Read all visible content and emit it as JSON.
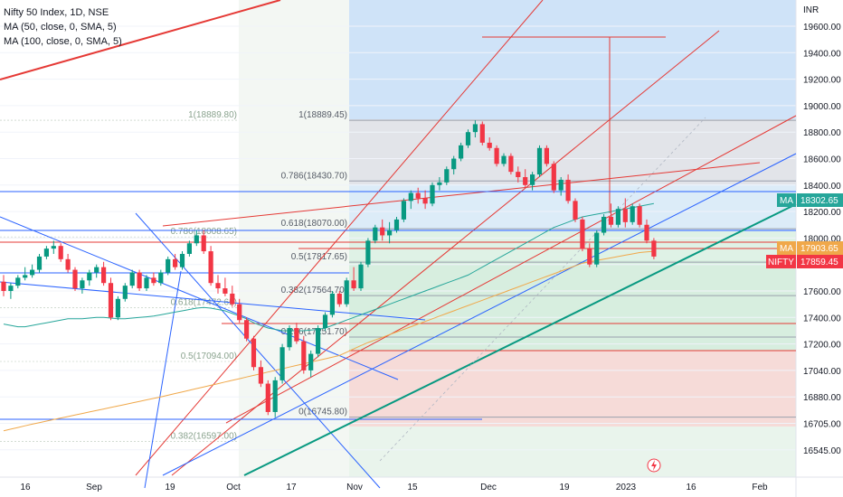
{
  "legend": {
    "title": "Nifty 50 Index, 1D, NSE",
    "ma1": "MA (50, close, 0, SMA, 5)",
    "ma2": "MA (100, close, 0, SMA, 5)"
  },
  "chart_data": {
    "type": "candlestick",
    "currency": "INR",
    "y_ticks": [
      {
        "value": 19600,
        "label": "19600.00"
      },
      {
        "value": 19400,
        "label": "19400.00"
      },
      {
        "value": 19200,
        "label": "19200.00"
      },
      {
        "value": 19000,
        "label": "19000.00"
      },
      {
        "value": 18800,
        "label": "18800.00"
      },
      {
        "value": 18600,
        "label": "18600.00"
      },
      {
        "value": 18400,
        "label": "18400.00"
      },
      {
        "value": 18200,
        "label": "18200.00"
      },
      {
        "value": 18000,
        "label": "18000.00"
      },
      {
        "value": 17800,
        "label": "17800.00"
      },
      {
        "value": 17600,
        "label": "17600.00"
      },
      {
        "value": 17400,
        "label": "17400.00"
      },
      {
        "value": 17200,
        "label": "17200.00"
      },
      {
        "value": 17040,
        "label": "17040.00"
      },
      {
        "value": 16880,
        "label": "16880.00"
      },
      {
        "value": 16705,
        "label": "16705.00"
      },
      {
        "value": 16545,
        "label": "16545.00"
      }
    ],
    "x_ticks": [
      "16",
      "Sep",
      "19",
      "Oct",
      "17",
      "Nov",
      "15",
      "Dec",
      "19",
      "2023",
      "16",
      "Feb"
    ],
    "price_labels": [
      {
        "tag": "MA",
        "value": "18302.65",
        "color": "#26a69a"
      },
      {
        "tag": "MA",
        "value": "17903.65",
        "color": "#f0a84a"
      },
      {
        "tag": "NIFTY",
        "value": "17859.45",
        "color": "#f23645"
      }
    ],
    "fib_primary": [
      {
        "label": "1(18889.45)",
        "value": 18889.45
      },
      {
        "label": "0.786(18430.70)",
        "value": 18430.7
      },
      {
        "label": "0.618(18070.00)",
        "value": 18070.0
      },
      {
        "label": "0.5(17817.65)",
        "value": 17817.65
      },
      {
        "label": "0.382(17564.70)",
        "value": 17564.7
      },
      {
        "label": "0.236(17251.70)",
        "value": 17251.7
      },
      {
        "label": "0(16745.80)",
        "value": 16745.8
      }
    ],
    "fib_secondary": [
      {
        "label": "1(18889.80)",
        "value": 18889.8
      },
      {
        "label": "0.786(18008.65)",
        "value": 18008.65
      },
      {
        "label": "0.618(17472.65)",
        "value": 17472.65
      },
      {
        "label": "0.5(17094.00)",
        "value": 17094.0
      },
      {
        "label": "0.382(16597.00)",
        "value": 16597.0
      }
    ],
    "candles": [
      [
        17670,
        17720,
        17560,
        17600
      ],
      [
        17600,
        17660,
        17540,
        17640
      ],
      [
        17640,
        17720,
        17620,
        17700
      ],
      [
        17700,
        17780,
        17680,
        17720
      ],
      [
        17720,
        17800,
        17700,
        17760
      ],
      [
        17760,
        17880,
        17740,
        17860
      ],
      [
        17860,
        17940,
        17840,
        17920
      ],
      [
        17920,
        17980,
        17880,
        17940
      ],
      [
        17940,
        17960,
        17820,
        17840
      ],
      [
        17840,
        17880,
        17740,
        17760
      ],
      [
        17760,
        17780,
        17600,
        17620
      ],
      [
        17620,
        17700,
        17580,
        17680
      ],
      [
        17680,
        17760,
        17640,
        17740
      ],
      [
        17740,
        17800,
        17700,
        17780
      ],
      [
        17780,
        17820,
        17640,
        17660
      ],
      [
        17660,
        17700,
        17380,
        17400
      ],
      [
        17400,
        17560,
        17380,
        17540
      ],
      [
        17540,
        17660,
        17520,
        17640
      ],
      [
        17640,
        17760,
        17620,
        17740
      ],
      [
        17740,
        17760,
        17600,
        17620
      ],
      [
        17620,
        17720,
        17600,
        17700
      ],
      [
        17700,
        17740,
        17640,
        17660
      ],
      [
        17660,
        17760,
        17640,
        17740
      ],
      [
        17740,
        17860,
        17720,
        17840
      ],
      [
        17840,
        17880,
        17760,
        17780
      ],
      [
        17780,
        17900,
        17760,
        17880
      ],
      [
        17880,
        17980,
        17860,
        17960
      ],
      [
        17960,
        18060,
        17940,
        18020
      ],
      [
        18020,
        18060,
        17880,
        17900
      ],
      [
        17900,
        17940,
        17640,
        17660
      ],
      [
        17660,
        17720,
        17580,
        17620
      ],
      [
        17620,
        17700,
        17560,
        17580
      ],
      [
        17580,
        17640,
        17480,
        17500
      ],
      [
        17500,
        17540,
        17360,
        17380
      ],
      [
        17380,
        17400,
        17220,
        17240
      ],
      [
        17240,
        17260,
        17040,
        17060
      ],
      [
        17060,
        17100,
        16940,
        16960
      ],
      [
        16960,
        16980,
        16760,
        16780
      ],
      [
        16780,
        17000,
        16745,
        16980
      ],
      [
        16980,
        17200,
        16960,
        17180
      ],
      [
        17180,
        17340,
        17160,
        17320
      ],
      [
        17320,
        17360,
        17200,
        17220
      ],
      [
        17220,
        17260,
        17020,
        17040
      ],
      [
        17040,
        17160,
        17000,
        17140
      ],
      [
        17140,
        17340,
        17120,
        17320
      ],
      [
        17320,
        17440,
        17300,
        17420
      ],
      [
        17420,
        17600,
        17400,
        17580
      ],
      [
        17580,
        17600,
        17480,
        17500
      ],
      [
        17500,
        17700,
        17480,
        17680
      ],
      [
        17680,
        17780,
        17600,
        17620
      ],
      [
        17620,
        17820,
        17600,
        17800
      ],
      [
        17800,
        18000,
        17780,
        17980
      ],
      [
        17980,
        18100,
        17960,
        18080
      ],
      [
        18080,
        18140,
        17980,
        18020
      ],
      [
        18020,
        18120,
        17960,
        18060
      ],
      [
        18060,
        18160,
        18040,
        18140
      ],
      [
        18140,
        18300,
        18120,
        18280
      ],
      [
        18280,
        18360,
        18220,
        18340
      ],
      [
        18340,
        18380,
        18260,
        18300
      ],
      [
        18300,
        18360,
        18220,
        18260
      ],
      [
        18260,
        18420,
        18240,
        18400
      ],
      [
        18400,
        18460,
        18360,
        18420
      ],
      [
        18420,
        18540,
        18400,
        18520
      ],
      [
        18520,
        18620,
        18480,
        18600
      ],
      [
        18600,
        18720,
        18580,
        18700
      ],
      [
        18700,
        18820,
        18680,
        18800
      ],
      [
        18800,
        18889,
        18760,
        18860
      ],
      [
        18860,
        18880,
        18700,
        18720
      ],
      [
        18720,
        18760,
        18660,
        18680
      ],
      [
        18680,
        18700,
        18540,
        18560
      ],
      [
        18560,
        18640,
        18540,
        18620
      ],
      [
        18620,
        18640,
        18480,
        18500
      ],
      [
        18500,
        18540,
        18420,
        18460
      ],
      [
        18460,
        18520,
        18380,
        18400
      ],
      [
        18400,
        18500,
        18360,
        18480
      ],
      [
        18480,
        18700,
        18460,
        18680
      ],
      [
        18680,
        18700,
        18540,
        18560
      ],
      [
        18560,
        18580,
        18340,
        18360
      ],
      [
        18360,
        18460,
        18320,
        18440
      ],
      [
        18440,
        18480,
        18260,
        18280
      ],
      [
        18280,
        18300,
        18120,
        18140
      ],
      [
        18140,
        18160,
        17900,
        17920
      ],
      [
        17920,
        17960,
        17780,
        17800
      ],
      [
        17800,
        18060,
        17780,
        18040
      ],
      [
        18040,
        18180,
        18020,
        18160
      ],
      [
        18160,
        18260,
        18080,
        18100
      ],
      [
        18100,
        18240,
        18080,
        18220
      ],
      [
        18220,
        18300,
        18080,
        18120
      ],
      [
        18120,
        18260,
        18100,
        18240
      ],
      [
        18240,
        18260,
        18080,
        18100
      ],
      [
        18100,
        18140,
        17960,
        17980
      ],
      [
        17980,
        18000,
        17840,
        17860
      ]
    ],
    "ma50": [
      17350,
      17340,
      17330,
      17330,
      17340,
      17350,
      17360,
      17370,
      17380,
      17390,
      17390,
      17390,
      17395,
      17400,
      17400,
      17395,
      17390,
      17390,
      17395,
      17400,
      17405,
      17410,
      17420,
      17430,
      17440,
      17450,
      17460,
      17470,
      17475,
      17470,
      17460,
      17450,
      17430,
      17410,
      17390,
      17360,
      17340,
      17320,
      17310,
      17300,
      17300,
      17300,
      17300,
      17305,
      17310,
      17320,
      17340,
      17360,
      17380,
      17400,
      17420,
      17440,
      17460,
      17480,
      17500,
      17520,
      17540,
      17560,
      17580,
      17600,
      17620,
      17640,
      17660,
      17680,
      17700,
      17720,
      17750,
      17780,
      17810,
      17840,
      17870,
      17900,
      17930,
      17960,
      17990,
      18020,
      18050,
      18080,
      18100,
      18120,
      18140,
      18160,
      18170,
      18180,
      18190,
      18200,
      18210,
      18220,
      18230,
      18240,
      18250,
      18260
    ],
    "ma100": [
      16660,
      16670,
      16680,
      16690,
      16700,
      16710,
      16720,
      16730,
      16740,
      16750,
      16760,
      16770,
      16780,
      16790,
      16800,
      16810,
      16820,
      16830,
      16840,
      16850,
      16860,
      16870,
      16880,
      16890,
      16900,
      16910,
      16920,
      16930,
      16940,
      16950,
      16960,
      16970,
      16980,
      16990,
      17000,
      17010,
      17020,
      17030,
      17040,
      17050,
      17060,
      17070,
      17080,
      17090,
      17100,
      17110,
      17120,
      17130,
      17150,
      17170,
      17190,
      17210,
      17230,
      17250,
      17270,
      17290,
      17310,
      17330,
      17350,
      17370,
      17390,
      17410,
      17430,
      17450,
      17470,
      17490,
      17510,
      17530,
      17550,
      17570,
      17590,
      17610,
      17630,
      17650,
      17670,
      17690,
      17710,
      17730,
      17750,
      17770,
      17790,
      17810,
      17820,
      17830,
      17840,
      17850,
      17860,
      17870,
      17880,
      17890,
      17895,
      17900
    ],
    "colors": {
      "up": "#089981",
      "down": "#f23645",
      "ma50": "#26a69a",
      "ma100": "#f0a84a",
      "trend": "#e53935",
      "channel": "#2962ff",
      "support": "#089981"
    }
  }
}
